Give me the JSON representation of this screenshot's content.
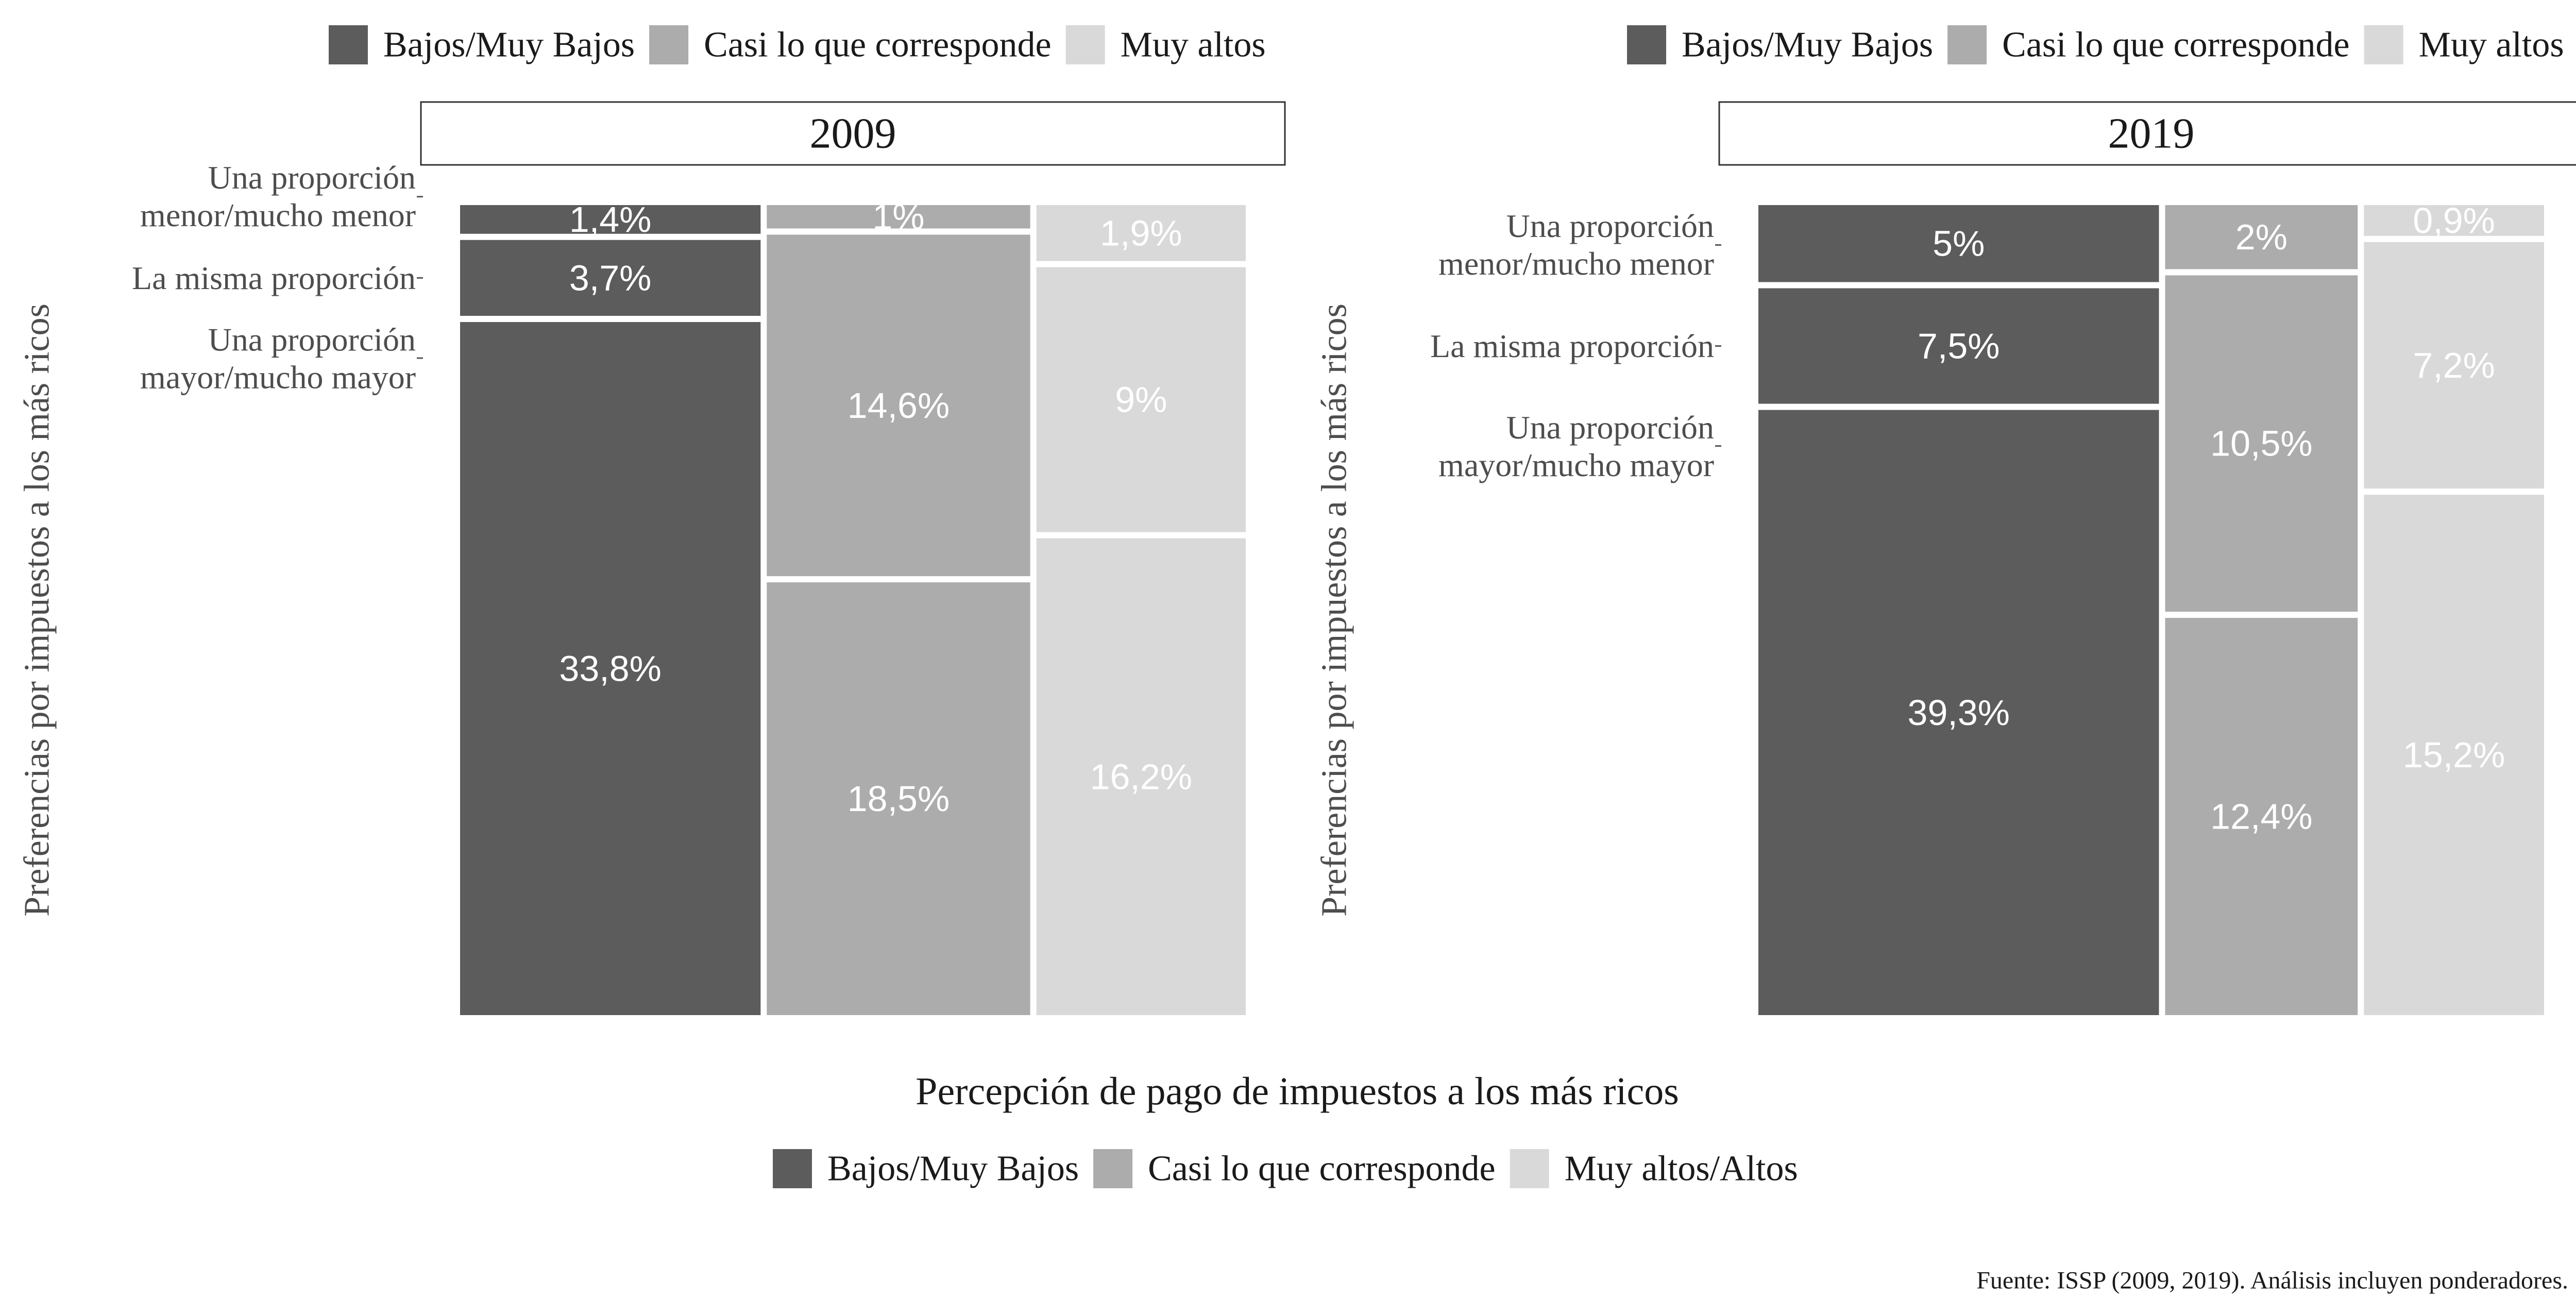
{
  "chart_data": {
    "type": "mosaic",
    "categories": [
      "Bajos/Muy Bajos",
      "Casi lo que corresponde",
      "Muy altos/Altos"
    ],
    "top_legend_labels": [
      "Bajos/Muy Bajos",
      "Casi lo que corresponde",
      "Muy altos"
    ],
    "bottom_legend_labels": [
      "Bajos/Muy Bajos",
      "Casi lo que corresponde",
      "Muy altos/Altos"
    ],
    "colors": [
      "#5c5c5c",
      "#acacac",
      "#d9d9d9"
    ],
    "row_labels": [
      [
        "Una proporción",
        "mayor/mucho mayor"
      ],
      [
        "La misma proporción"
      ],
      [
        "Una proporción",
        "menor/mucho menor"
      ]
    ],
    "ylabel": "Preferencias por impuestos a los más ricos",
    "xlabel": "Percepción de pago de impuestos a los más ricos",
    "caption": "Fuente: ISSP (2009, 2019). Análisis incluyen ponderadores.",
    "panels": [
      {
        "title": "2009",
        "columns": [
          {
            "category": "Bajos/Muy Bajos",
            "segments": [
              {
                "row": "Una proporción mayor/mucho mayor",
                "value": 33.8,
                "label": "33,8%"
              },
              {
                "row": "La misma proporción",
                "value": 3.7,
                "label": "3,7%"
              },
              {
                "row": "Una proporción menor/mucho menor",
                "value": 1.4,
                "label": "1,4%"
              }
            ]
          },
          {
            "category": "Casi lo que corresponde",
            "segments": [
              {
                "row": "Una proporción mayor/mucho mayor",
                "value": 18.5,
                "label": "18,5%"
              },
              {
                "row": "La misma proporción",
                "value": 14.6,
                "label": "14,6%"
              },
              {
                "row": "Una proporción menor/mucho menor",
                "value": 1.0,
                "label": "1%"
              }
            ]
          },
          {
            "category": "Muy altos/Altos",
            "segments": [
              {
                "row": "Una proporción mayor/mucho mayor",
                "value": 16.2,
                "label": "16,2%"
              },
              {
                "row": "La misma proporción",
                "value": 9.0,
                "label": "9%"
              },
              {
                "row": "Una proporción menor/mucho menor",
                "value": 1.9,
                "label": "1,9%"
              }
            ]
          }
        ]
      },
      {
        "title": "2019",
        "columns": [
          {
            "category": "Bajos/Muy Bajos",
            "segments": [
              {
                "row": "Una proporción mayor/mucho mayor",
                "value": 39.3,
                "label": "39,3%"
              },
              {
                "row": "La misma proporción",
                "value": 7.5,
                "label": "7,5%"
              },
              {
                "row": "Una proporción menor/mucho menor",
                "value": 5.0,
                "label": "5%"
              }
            ]
          },
          {
            "category": "Casi lo que corresponde",
            "segments": [
              {
                "row": "Una proporción mayor/mucho mayor",
                "value": 12.4,
                "label": "12,4%"
              },
              {
                "row": "La misma proporción",
                "value": 10.5,
                "label": "10,5%"
              },
              {
                "row": "Una proporción menor/mucho menor",
                "value": 2.0,
                "label": "2%"
              }
            ]
          },
          {
            "category": "Muy altos/Altos",
            "segments": [
              {
                "row": "Una proporción mayor/mucho mayor",
                "value": 15.2,
                "label": "15,2%"
              },
              {
                "row": "La misma proporción",
                "value": 7.2,
                "label": "7,2%"
              },
              {
                "row": "Una proporción menor/mucho menor",
                "value": 0.9,
                "label": "0,9%"
              }
            ]
          }
        ]
      }
    ]
  }
}
